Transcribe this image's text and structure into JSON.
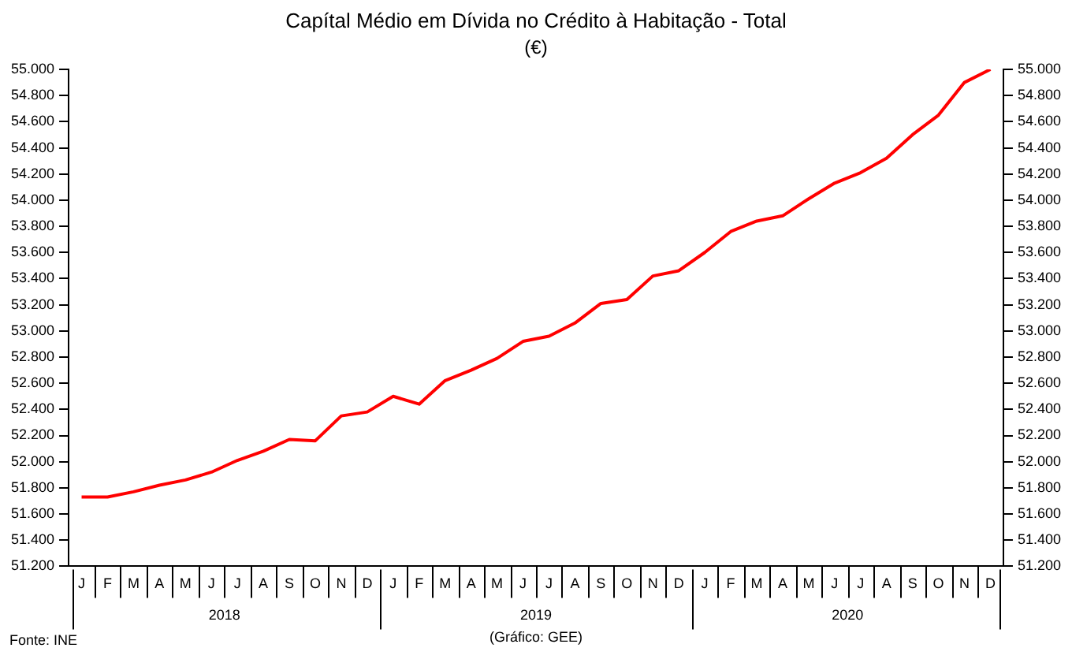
{
  "chart_data": {
    "type": "line",
    "title": "Capítal Médio em Dívida no Crédito à Habitação - Total",
    "subtitle": "(€)",
    "categories": [
      "J",
      "F",
      "M",
      "A",
      "M",
      "J",
      "J",
      "A",
      "S",
      "O",
      "N",
      "D",
      "J",
      "F",
      "M",
      "A",
      "M",
      "J",
      "J",
      "A",
      "S",
      "O",
      "N",
      "D",
      "J",
      "F",
      "M",
      "A",
      "M",
      "J",
      "J",
      "A",
      "S",
      "O",
      "N",
      "D"
    ],
    "series": [
      {
        "color": "#ff0000",
        "values": [
          51730,
          51730,
          51770,
          51820,
          51860,
          51920,
          52010,
          52080,
          52170,
          52160,
          52350,
          52380,
          52500,
          52440,
          52620,
          52700,
          52790,
          52920,
          52960,
          53060,
          53210,
          53240,
          53420,
          53460,
          53600,
          53760,
          53840,
          53880,
          54010,
          54130,
          54210,
          54320,
          54500,
          54650,
          54900,
          55000
        ]
      }
    ],
    "ylim": [
      51200,
      55000
    ],
    "yticks": [
      {
        "value": 51200,
        "label": "51.200"
      },
      {
        "value": 51400,
        "label": "51.400"
      },
      {
        "value": 51600,
        "label": "51.600"
      },
      {
        "value": 51800,
        "label": "51.800"
      },
      {
        "value": 52000,
        "label": "52.000"
      },
      {
        "value": 52200,
        "label": "52.200"
      },
      {
        "value": 52400,
        "label": "52.400"
      },
      {
        "value": 52600,
        "label": "52.600"
      },
      {
        "value": 52800,
        "label": "52.800"
      },
      {
        "value": 53000,
        "label": "53.000"
      },
      {
        "value": 53200,
        "label": "53.200"
      },
      {
        "value": 53400,
        "label": "53.400"
      },
      {
        "value": 53600,
        "label": "53.600"
      },
      {
        "value": 53800,
        "label": "53.800"
      },
      {
        "value": 54000,
        "label": "54.000"
      },
      {
        "value": 54200,
        "label": "54.200"
      },
      {
        "value": 54400,
        "label": "54.400"
      },
      {
        "value": 54600,
        "label": "54.600"
      },
      {
        "value": 54800,
        "label": "54.800"
      },
      {
        "value": 55000,
        "label": "55.000"
      }
    ],
    "y2lim": [
      51200,
      55000
    ],
    "y2ticks": [
      {
        "value": 51200,
        "label": "51.200"
      },
      {
        "value": 51400,
        "label": "51.400"
      },
      {
        "value": 51600,
        "label": "51.600"
      },
      {
        "value": 51800,
        "label": "51.800"
      },
      {
        "value": 52000,
        "label": "52.000"
      },
      {
        "value": 52200,
        "label": "52.200"
      },
      {
        "value": 52400,
        "label": "52.400"
      },
      {
        "value": 52600,
        "label": "52.600"
      },
      {
        "value": 52800,
        "label": "52.800"
      },
      {
        "value": 53000,
        "label": "53.000"
      },
      {
        "value": 53200,
        "label": "53.200"
      },
      {
        "value": 53400,
        "label": "53.400"
      },
      {
        "value": 53600,
        "label": "53.600"
      },
      {
        "value": 53800,
        "label": "53.800"
      },
      {
        "value": 54000,
        "label": "54.000"
      },
      {
        "value": 54200,
        "label": "54.200"
      },
      {
        "value": 54400,
        "label": "54.400"
      },
      {
        "value": 54600,
        "label": "54.600"
      },
      {
        "value": 54800,
        "label": "54.800"
      },
      {
        "value": 55000,
        "label": "55.000"
      }
    ],
    "annotations": [
      "2018",
      "2019",
      "2020",
      "Fonte: INE",
      "(Gráfico: GEE)"
    ],
    "grid": false,
    "legend": false,
    "marker": "none",
    "line_style": "solid"
  }
}
